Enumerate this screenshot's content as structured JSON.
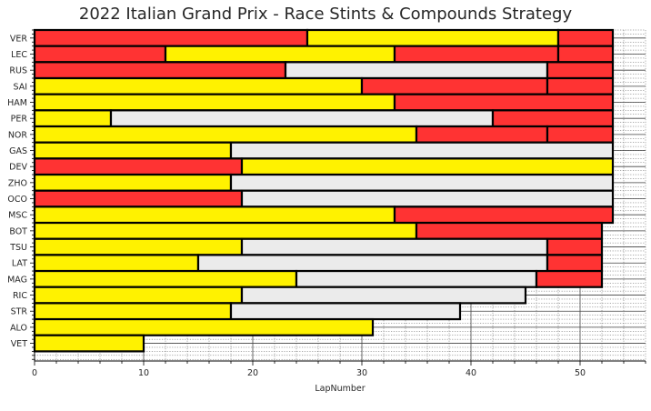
{
  "chart_data": {
    "type": "bar",
    "orientation": "horizontal-stacked",
    "title": "2022 Italian Grand Prix - Race Stints & Compounds Strategy",
    "xlabel": "LapNumber",
    "ylabel": "",
    "xlim": [
      0,
      56
    ],
    "xticks": [
      0,
      10,
      20,
      30,
      40,
      50
    ],
    "grid": "on (major and minor)",
    "legend": "none",
    "compound_colors": {
      "SOFT": "#ff3333",
      "MEDIUM": "#fff200",
      "HARD": "#ebebeb"
    },
    "drivers": [
      {
        "driver": "VER",
        "stints": [
          {
            "compound": "SOFT",
            "laps": 25
          },
          {
            "compound": "MEDIUM",
            "laps": 23
          },
          {
            "compound": "SOFT",
            "laps": 5
          }
        ]
      },
      {
        "driver": "LEC",
        "stints": [
          {
            "compound": "SOFT",
            "laps": 12
          },
          {
            "compound": "MEDIUM",
            "laps": 21
          },
          {
            "compound": "SOFT",
            "laps": 15
          },
          {
            "compound": "SOFT",
            "laps": 5
          }
        ]
      },
      {
        "driver": "RUS",
        "stints": [
          {
            "compound": "SOFT",
            "laps": 23
          },
          {
            "compound": "HARD",
            "laps": 24
          },
          {
            "compound": "SOFT",
            "laps": 6
          }
        ]
      },
      {
        "driver": "SAI",
        "stints": [
          {
            "compound": "MEDIUM",
            "laps": 30
          },
          {
            "compound": "SOFT",
            "laps": 17
          },
          {
            "compound": "SOFT",
            "laps": 6
          }
        ]
      },
      {
        "driver": "HAM",
        "stints": [
          {
            "compound": "MEDIUM",
            "laps": 33
          },
          {
            "compound": "SOFT",
            "laps": 20
          }
        ]
      },
      {
        "driver": "PER",
        "stints": [
          {
            "compound": "MEDIUM",
            "laps": 7
          },
          {
            "compound": "HARD",
            "laps": 35
          },
          {
            "compound": "SOFT",
            "laps": 11
          }
        ]
      },
      {
        "driver": "NOR",
        "stints": [
          {
            "compound": "MEDIUM",
            "laps": 35
          },
          {
            "compound": "SOFT",
            "laps": 12
          },
          {
            "compound": "SOFT",
            "laps": 6
          }
        ]
      },
      {
        "driver": "GAS",
        "stints": [
          {
            "compound": "MEDIUM",
            "laps": 18
          },
          {
            "compound": "HARD",
            "laps": 35
          }
        ]
      },
      {
        "driver": "DEV",
        "stints": [
          {
            "compound": "SOFT",
            "laps": 19
          },
          {
            "compound": "MEDIUM",
            "laps": 34
          }
        ]
      },
      {
        "driver": "ZHO",
        "stints": [
          {
            "compound": "MEDIUM",
            "laps": 18
          },
          {
            "compound": "HARD",
            "laps": 35
          }
        ]
      },
      {
        "driver": "OCO",
        "stints": [
          {
            "compound": "SOFT",
            "laps": 19
          },
          {
            "compound": "HARD",
            "laps": 34
          }
        ]
      },
      {
        "driver": "MSC",
        "stints": [
          {
            "compound": "MEDIUM",
            "laps": 33
          },
          {
            "compound": "SOFT",
            "laps": 20
          }
        ]
      },
      {
        "driver": "BOT",
        "stints": [
          {
            "compound": "MEDIUM",
            "laps": 35
          },
          {
            "compound": "SOFT",
            "laps": 17
          }
        ]
      },
      {
        "driver": "TSU",
        "stints": [
          {
            "compound": "MEDIUM",
            "laps": 19
          },
          {
            "compound": "HARD",
            "laps": 28
          },
          {
            "compound": "SOFT",
            "laps": 5
          }
        ]
      },
      {
        "driver": "LAT",
        "stints": [
          {
            "compound": "MEDIUM",
            "laps": 15
          },
          {
            "compound": "HARD",
            "laps": 32
          },
          {
            "compound": "SOFT",
            "laps": 5
          }
        ]
      },
      {
        "driver": "MAG",
        "stints": [
          {
            "compound": "MEDIUM",
            "laps": 24
          },
          {
            "compound": "HARD",
            "laps": 22
          },
          {
            "compound": "SOFT",
            "laps": 6
          }
        ]
      },
      {
        "driver": "RIC",
        "stints": [
          {
            "compound": "MEDIUM",
            "laps": 19
          },
          {
            "compound": "HARD",
            "laps": 26
          }
        ]
      },
      {
        "driver": "STR",
        "stints": [
          {
            "compound": "MEDIUM",
            "laps": 18
          },
          {
            "compound": "HARD",
            "laps": 21
          }
        ]
      },
      {
        "driver": "ALO",
        "stints": [
          {
            "compound": "MEDIUM",
            "laps": 31
          }
        ]
      },
      {
        "driver": "VET",
        "stints": [
          {
            "compound": "MEDIUM",
            "laps": 10
          }
        ]
      }
    ]
  }
}
